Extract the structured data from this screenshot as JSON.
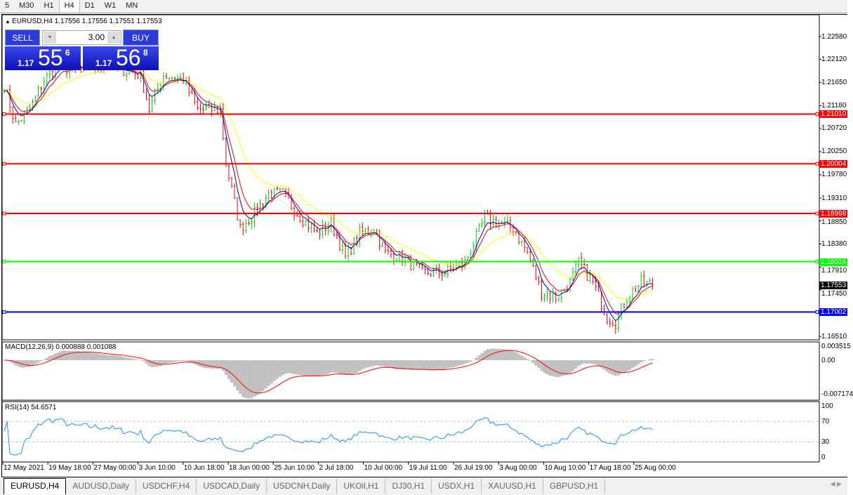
{
  "timeframes": [
    "5",
    "M30",
    "H1",
    "H4",
    "D1",
    "W1",
    "MN"
  ],
  "active_timeframe": "H4",
  "chart": {
    "header": "EURUSD,H4  1.17556 1.17556 1.17551 1.17553",
    "symbol_icon": "triangle-up-icon"
  },
  "trade_panel": {
    "sell_label": "SELL",
    "buy_label": "BUY",
    "lot": "3.00",
    "sell": {
      "big": "1.17",
      "pips": "55",
      "frac": "6"
    },
    "buy": {
      "big": "1.17",
      "pips": "56",
      "frac": "8"
    }
  },
  "price_axis": [
    "1.22580",
    "1.22120",
    "1.21650",
    "1.21180",
    "1.20720",
    "1.20250",
    "1.19780",
    "1.19310",
    "1.18850",
    "1.18380",
    "1.17910",
    "1.17450",
    "1.16510"
  ],
  "hlines": [
    {
      "price": "1.21010",
      "color": "#ff0000"
    },
    {
      "price": "1.20004",
      "color": "#ff0000"
    },
    {
      "price": "1.18998",
      "color": "#ff0000"
    },
    {
      "price": "1.18024",
      "color": "#00ff00"
    },
    {
      "price": "1.17002",
      "color": "#0000ff"
    }
  ],
  "current_price": "1.17553",
  "colors": {
    "bull": "#00cc00",
    "bear": "#ff0000",
    "ma_fast": "#0000aa",
    "ma_mid": "#ff0000",
    "ma_slow": "#ffff00",
    "macd_hist": "#c0c0c0",
    "macd_signal": "#ff0000",
    "rsi": "#1e90ff"
  },
  "macd": {
    "label": "MACD(12,26,9) 0.000888 0.001088",
    "axis": [
      "0.003515",
      "0.00",
      "-0.007174"
    ]
  },
  "rsi": {
    "label": "RSI(14) 54.6571",
    "axis": [
      "100",
      "70",
      "30",
      "0"
    ]
  },
  "time_axis": [
    "12 May 2021",
    "19 May 18:00",
    "27 May 00:00",
    "3 Jun 10:00",
    "10 Jun 18:00",
    "18 Jun 00:00",
    "25 Jun 10:00",
    "2 Jul 18:00",
    "10 Jul 00:00",
    "19 Jul 11:00",
    "26 Jul 19:00",
    "3 Aug 00:00",
    "10 Aug 10:00",
    "17 Aug 18:00",
    "25 Aug 00:00"
  ],
  "chart_data": {
    "type": "candlestick",
    "symbol": "EURUSD",
    "timeframe": "H4",
    "price_path": [
      [
        0,
        1.216
      ],
      [
        4,
        1.208
      ],
      [
        9,
        1.211
      ],
      [
        14,
        1.217
      ],
      [
        19,
        1.22
      ],
      [
        24,
        1.219
      ],
      [
        36,
        1.22
      ],
      [
        48,
        1.218
      ],
      [
        51,
        1.211
      ],
      [
        56,
        1.218
      ],
      [
        63,
        1.217
      ],
      [
        68,
        1.211
      ],
      [
        76,
        1.211
      ],
      [
        78,
        1.2
      ],
      [
        83,
        1.187
      ],
      [
        88,
        1.19
      ],
      [
        93,
        1.194
      ],
      [
        98,
        1.194
      ],
      [
        103,
        1.19
      ],
      [
        110,
        1.186
      ],
      [
        115,
        1.188
      ],
      [
        120,
        1.181
      ],
      [
        125,
        1.186
      ],
      [
        130,
        1.187
      ],
      [
        134,
        1.182
      ],
      [
        140,
        1.181
      ],
      [
        147,
        1.178
      ],
      [
        155,
        1.178
      ],
      [
        162,
        1.18
      ],
      [
        169,
        1.189
      ],
      [
        174,
        1.188
      ],
      [
        179,
        1.187
      ],
      [
        184,
        1.182
      ],
      [
        189,
        1.174
      ],
      [
        194,
        1.173
      ],
      [
        199,
        1.176
      ],
      [
        202,
        1.18
      ],
      [
        207,
        1.176
      ],
      [
        212,
        1.169
      ],
      [
        215,
        1.168
      ],
      [
        219,
        1.173
      ],
      [
        224,
        1.176
      ],
      [
        228,
        1.17553
      ]
    ]
  },
  "tabs": [
    "EURUSD,H4",
    "AUDUSD,Daily",
    "USDCHF,H4",
    "USDCAD,Daily",
    "USDCNH,Daily",
    "UKOil,H1",
    "DJ30,H1",
    "USDX,H1",
    "XAUUSD,H1",
    "GBPUSD,H1"
  ],
  "active_tab": "EURUSD,H4"
}
